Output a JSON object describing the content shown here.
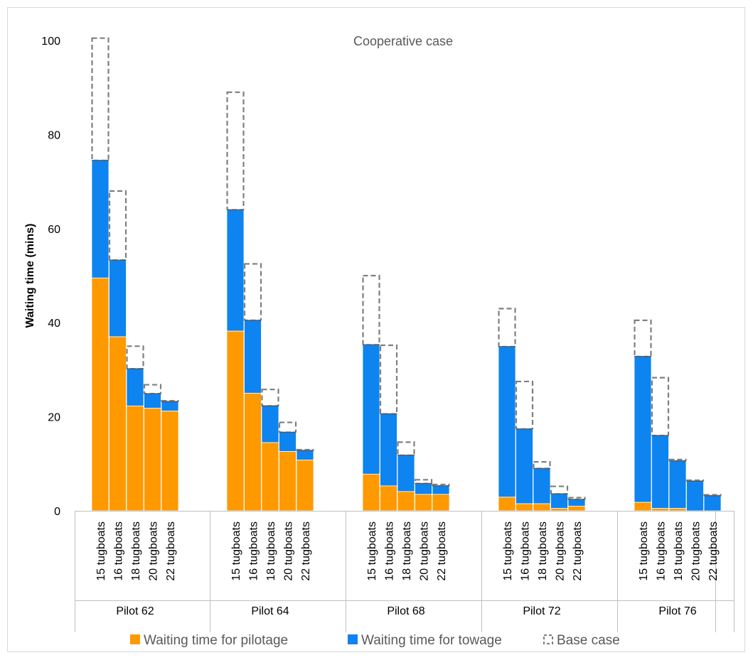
{
  "chart_data": {
    "type": "bar",
    "stacked": true,
    "title": "Cooperative case",
    "ylabel": "Waiting time (mins)",
    "xlabel": "",
    "ylim": [
      0,
      100
    ],
    "yticks": [
      0,
      20,
      40,
      60,
      80,
      100
    ],
    "grid": false,
    "legend_position": "bottom",
    "groups": [
      {
        "label": "Pilot 62",
        "categories": [
          "15 tugboats",
          "16 tugboats",
          "18 tugboats",
          "20 tugboats",
          "22 tugboats"
        ],
        "pilotage": [
          49.5,
          37.0,
          22.3,
          21.8,
          21.2
        ],
        "total": [
          74.5,
          53.3,
          30.2,
          24.9,
          23.2
        ],
        "base_case": [
          100.5,
          68.0,
          35.0,
          26.8,
          23.4
        ]
      },
      {
        "label": "Pilot 64",
        "categories": [
          "15 tugboats",
          "16 tugboats",
          "18 tugboats",
          "20 tugboats",
          "22 tugboats"
        ],
        "pilotage": [
          38.2,
          25.0,
          14.5,
          12.6,
          10.8
        ],
        "total": [
          64.0,
          40.5,
          22.3,
          16.7,
          12.8
        ],
        "base_case": [
          89.0,
          52.5,
          25.8,
          18.8,
          13.0
        ]
      },
      {
        "label": "Pilot 68",
        "categories": [
          "15 tugboats",
          "16 tugboats",
          "18 tugboats",
          "20 tugboats",
          "22 tugboats"
        ],
        "pilotage": [
          7.8,
          5.3,
          4.1,
          3.5,
          3.5
        ],
        "total": [
          35.3,
          20.6,
          11.8,
          5.8,
          5.3
        ],
        "base_case": [
          50.0,
          35.2,
          14.6,
          6.6,
          5.6
        ]
      },
      {
        "label": "Pilot 72",
        "categories": [
          "15 tugboats",
          "16 tugboats",
          "18 tugboats",
          "20 tugboats",
          "22 tugboats"
        ],
        "pilotage": [
          2.9,
          1.5,
          1.5,
          0.5,
          1.0
        ],
        "total": [
          34.9,
          17.4,
          9.0,
          3.6,
          2.4
        ],
        "base_case": [
          43.0,
          27.5,
          10.4,
          5.2,
          2.8
        ]
      },
      {
        "label": "Pilot 76",
        "categories": [
          "15 tugboats",
          "16 tugboats",
          "18 tugboats",
          "20 tugboats",
          "22 tugboats"
        ],
        "pilotage": [
          1.8,
          0.5,
          0.5,
          0.0,
          0.0
        ],
        "total": [
          32.8,
          16.0,
          10.6,
          6.3,
          3.2
        ],
        "base_case": [
          40.5,
          28.3,
          10.9,
          6.5,
          3.4
        ]
      }
    ],
    "series": [
      {
        "name": "Waiting time for pilotage",
        "color": "#ff9900"
      },
      {
        "name": "Waiting time for towage",
        "color": "#0d84f0"
      },
      {
        "name": "Base case",
        "color": "#7f7f7f",
        "style": "dashed-outline"
      }
    ]
  }
}
